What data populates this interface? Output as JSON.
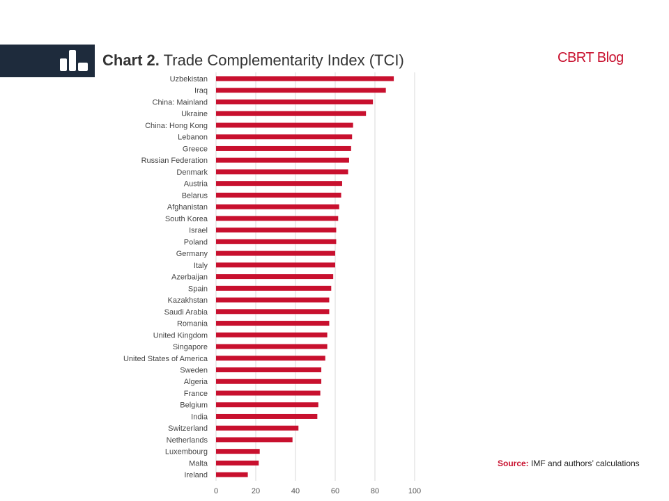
{
  "header": {
    "title_lead": "Chart 2.",
    "title_rest": "Trade Complementarity Index (TCI)",
    "brand": "CBRT Blog"
  },
  "source": {
    "label": "Source:",
    "text": "IMF and authors’ calculations"
  },
  "colors": {
    "bar": "#c8102e",
    "header_bg": "#1e2b3c",
    "grid": "#d9d9d9"
  },
  "chart_data": {
    "type": "bar",
    "orientation": "horizontal",
    "title": "Chart 2. Trade Complementarity Index (TCI)",
    "categories": [
      "Uzbekistan",
      "Iraq",
      "China: Mainland",
      "Ukraine",
      "China: Hong Kong",
      "Lebanon",
      "Greece",
      "Russian Federation",
      "Denmark",
      "Austria",
      "Belarus",
      "Afghanistan",
      "South Korea",
      "Israel",
      "Poland",
      "Germany",
      "Italy",
      "Azerbaijan",
      "Spain",
      "Kazakhstan",
      "Saudi Arabia",
      "Romania",
      "United Kingdom",
      "Singapore",
      "United States of America",
      "Sweden",
      "Algeria",
      "France",
      "Belgium",
      "India",
      "Switzerland",
      "Netherlands",
      "Luxembourg",
      "Malta",
      "Ireland"
    ],
    "values": [
      89.5,
      85.5,
      79,
      75.5,
      69,
      68.5,
      68,
      67,
      66.5,
      63.5,
      63,
      62,
      61.5,
      60.5,
      60.5,
      60,
      60,
      59,
      58,
      57,
      57,
      57,
      56,
      56,
      55,
      53,
      53,
      52.5,
      51.5,
      51,
      41.5,
      38.5,
      22,
      21.5,
      16
    ],
    "xlim": [
      0,
      100
    ],
    "xticks": [
      0,
      20,
      40,
      60,
      80,
      100
    ],
    "xlabel": "",
    "ylabel": "",
    "grid": "vertical",
    "legend": "none"
  }
}
